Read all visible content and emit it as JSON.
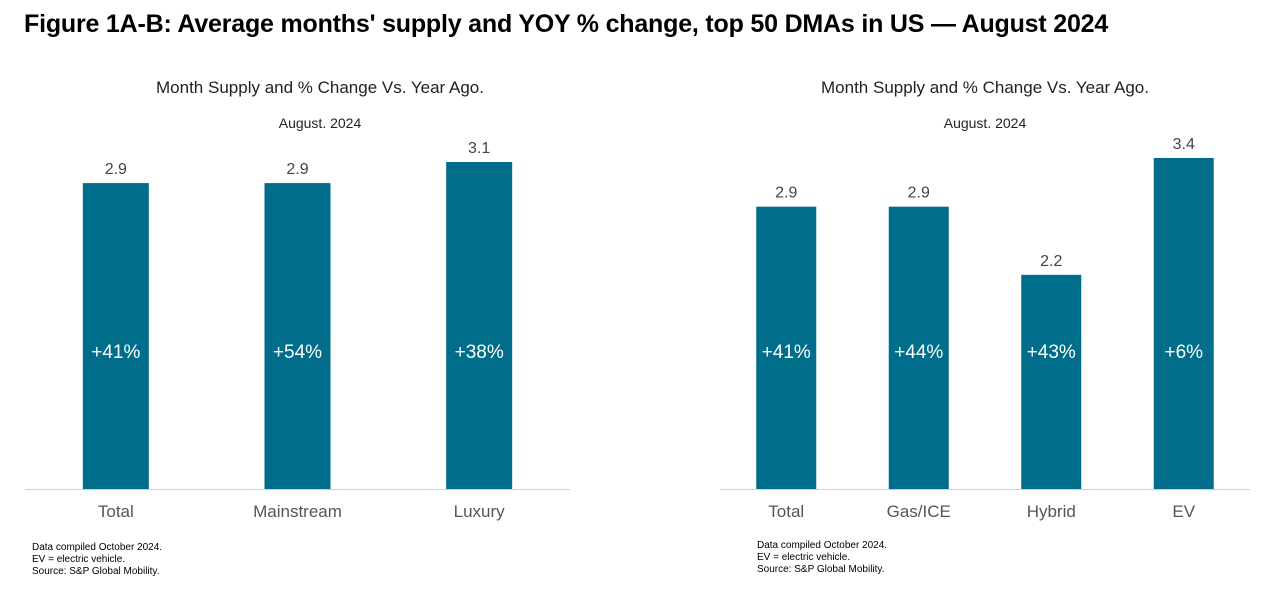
{
  "figure_title": "Figure 1A-B: Average months' supply and YOY % change, top 50 DMAs in US — August 2024",
  "colors": {
    "bar": "#006d8a",
    "axis": "#d0d0d0",
    "value_label": "#444444",
    "inner_label": "#ffffff"
  },
  "chart_data": [
    {
      "type": "bar",
      "title": "Month Supply and % Change Vs. Year Ago.",
      "subtitle": "August. 2024",
      "categories": [
        "Total",
        "Mainstream",
        "Luxury"
      ],
      "values": [
        2.9,
        2.9,
        3.1
      ],
      "value_labels": [
        "2.9",
        "2.9",
        "3.1"
      ],
      "yoy_labels": [
        "+41%",
        "+54%",
        "+38%"
      ],
      "ylim": [
        0,
        3.1
      ],
      "grid": false,
      "notes": [
        "Data compiled October 2024.",
        "EV = electric vehicle.",
        "Source: S&P Global Mobility."
      ]
    },
    {
      "type": "bar",
      "title": "Month Supply and % Change Vs. Year Ago.",
      "subtitle": "August. 2024",
      "categories": [
        "Total",
        "Gas/ICE",
        "Hybrid",
        "EV"
      ],
      "values": [
        2.9,
        2.9,
        2.2,
        3.4
      ],
      "value_labels": [
        "2.9",
        "2.9",
        "2.2",
        "3.4"
      ],
      "yoy_labels": [
        "+41%",
        "+44%",
        "+43%",
        "+6%"
      ],
      "ylim": [
        0,
        3.4
      ],
      "grid": false,
      "notes": [
        "Data compiled October 2024.",
        "EV = electric vehicle.",
        "Source: S&P Global Mobility."
      ]
    }
  ]
}
